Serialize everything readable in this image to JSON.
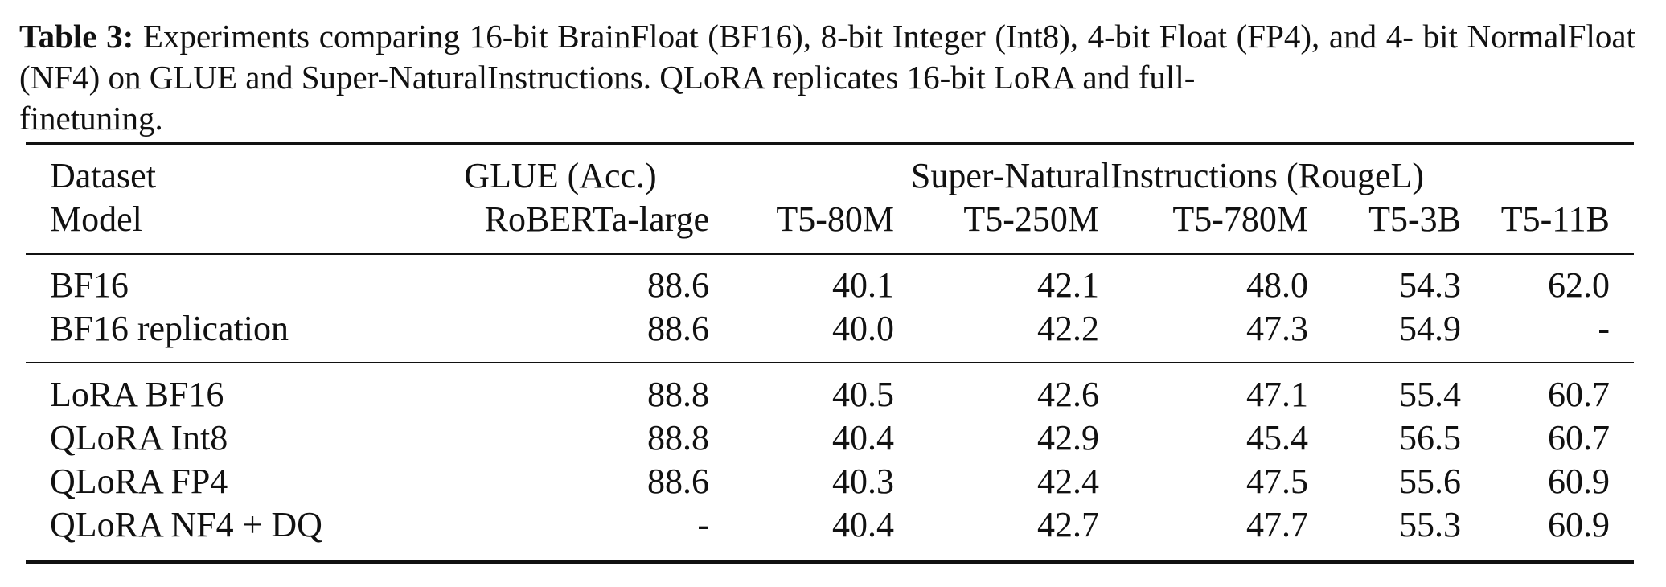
{
  "caption": {
    "label": "Table 3:",
    "text_line1": "Experiments comparing 16-bit BrainFloat (BF16), 8-bit Integer (Int8), 4-bit Float (FP4), and 4-",
    "text_line2": "bit NormalFloat (NF4) on GLUE and Super-NaturalInstructions. QLoRA replicates 16-bit LoRA and full-",
    "text_line3": "finetuning."
  },
  "header": {
    "dataset_label": "Dataset",
    "model_label": "Model",
    "glue_group": "GLUE (Acc.)",
    "sni_group": "Super-NaturalInstructions (RougeL)",
    "models": [
      "RoBERTa-large",
      "T5-80M",
      "T5-250M",
      "T5-780M",
      "T5-3B",
      "T5-11B"
    ]
  },
  "group1": [
    {
      "name": "BF16",
      "values": [
        "88.6",
        "40.1",
        "42.1",
        "48.0",
        "54.3",
        "62.0"
      ]
    },
    {
      "name": "BF16 replication",
      "values": [
        "88.6",
        "40.0",
        "42.2",
        "47.3",
        "54.9",
        "-"
      ]
    }
  ],
  "group2": [
    {
      "name": "LoRA BF16",
      "values": [
        "88.8",
        "40.5",
        "42.6",
        "47.1",
        "55.4",
        "60.7"
      ]
    },
    {
      "name": "QLoRA Int8",
      "values": [
        "88.8",
        "40.4",
        "42.9",
        "45.4",
        "56.5",
        "60.7"
      ]
    },
    {
      "name": "QLoRA FP4",
      "values": [
        "88.6",
        "40.3",
        "42.4",
        "47.5",
        "55.6",
        "60.9"
      ]
    },
    {
      "name": "QLoRA NF4 + DQ",
      "values": [
        "-",
        "40.4",
        "42.7",
        "47.7",
        "55.3",
        "60.9"
      ]
    }
  ]
}
